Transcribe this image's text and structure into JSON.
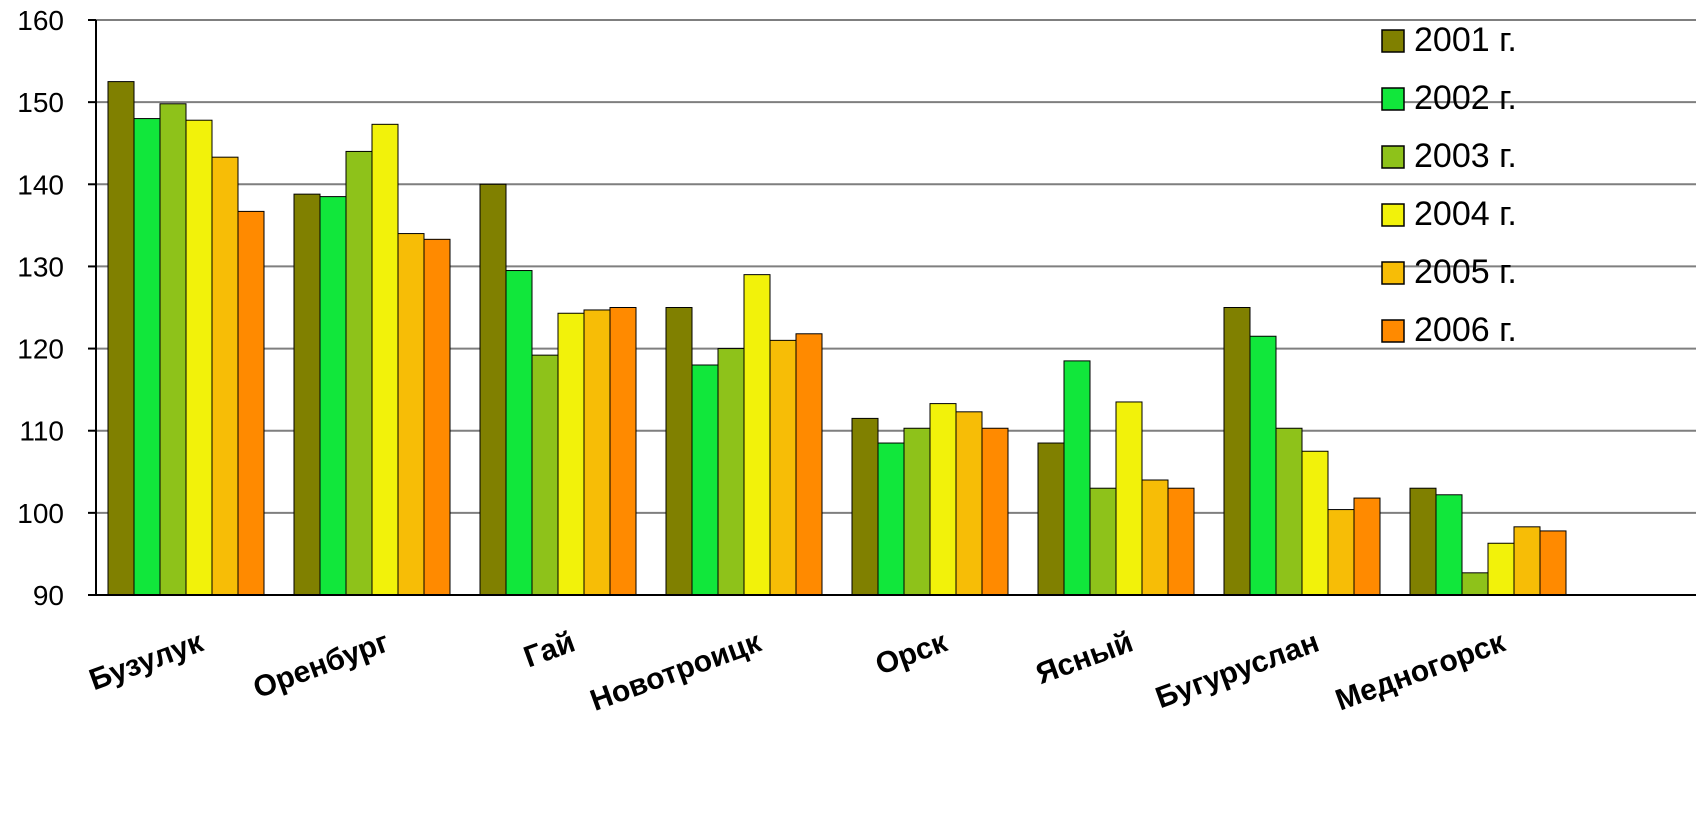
{
  "chart_data": {
    "type": "bar",
    "title": "",
    "xlabel": "",
    "ylabel": "",
    "ylim": [
      90,
      160
    ],
    "yticks": [
      90,
      100,
      110,
      120,
      130,
      140,
      150,
      160
    ],
    "grid": true,
    "legend_position": "top-right",
    "categories": [
      "Бузулук",
      "Оренбург",
      "Гай",
      "Новотроицк",
      "Орск",
      "Ясный",
      "Бугуруслан",
      "Медногорск"
    ],
    "series": [
      {
        "name": "2001 г.",
        "color": "#808000",
        "values": [
          152.5,
          138.8,
          140.0,
          125.0,
          111.5,
          108.5,
          125.0,
          103.0
        ]
      },
      {
        "name": "2002 г.",
        "color": "#11e73b",
        "values": [
          148.0,
          138.5,
          129.5,
          118.0,
          108.5,
          118.5,
          121.5,
          102.2
        ]
      },
      {
        "name": "2003 г.",
        "color": "#8ec21a",
        "values": [
          149.8,
          144.0,
          119.2,
          120.0,
          110.3,
          103.0,
          110.3,
          92.7
        ]
      },
      {
        "name": "2004 г.",
        "color": "#f2f20a",
        "values": [
          147.8,
          147.3,
          124.3,
          129.0,
          113.3,
          113.5,
          107.5,
          96.3
        ]
      },
      {
        "name": "2005 г.",
        "color": "#f7bd06",
        "values": [
          143.3,
          134.0,
          124.7,
          121.0,
          112.3,
          104.0,
          100.4,
          98.3
        ]
      },
      {
        "name": "2006 г.",
        "color": "#ff8a00",
        "values": [
          136.7,
          133.3,
          125.0,
          121.8,
          110.3,
          103.0,
          101.8,
          97.8
        ]
      }
    ]
  }
}
